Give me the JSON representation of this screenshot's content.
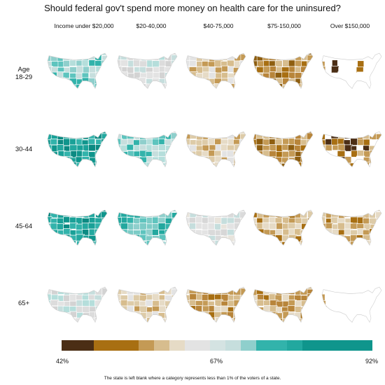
{
  "title": "Should federal gov't spend more money on health care for the uninsured?",
  "columns": [
    "Income under $20,000",
    "$20-40,000",
    "$40-75,000",
    "$75-150,000",
    "Over $150,000"
  ],
  "rows": [
    {
      "label_line1": "Age",
      "label_line2": "18-29"
    },
    {
      "label_line1": "30-44",
      "label_line2": ""
    },
    {
      "label_line1": "45-64",
      "label_line2": ""
    },
    {
      "label_line1": "65+",
      "label_line2": ""
    }
  ],
  "legend": {
    "min_label": "42%",
    "mid_label": "67%",
    "max_label": "92%",
    "colors": [
      "#4b2e15",
      "#a86f12",
      "#c49a55",
      "#d7bd8e",
      "#e6dbc6",
      "#e3e3e3",
      "#c6dedd",
      "#8fcfcc",
      "#32b3ab",
      "#0f958c"
    ]
  },
  "map_tones": [
    [
      "teal-light",
      "gray-teal",
      "tan-light",
      "brown",
      "blank-partial"
    ],
    [
      "teal-dark",
      "teal-light",
      "tan-light",
      "brown",
      "brown-partial"
    ],
    [
      "teal-dark",
      "teal-medium",
      "gray",
      "tan-medium",
      "tan-medium"
    ],
    [
      "gray-teal",
      "tan-light",
      "brown-light",
      "brown-light",
      "blank-partial"
    ]
  ],
  "footnote": "The state is left blank where a category represents less than 1% of the voters of a state."
}
